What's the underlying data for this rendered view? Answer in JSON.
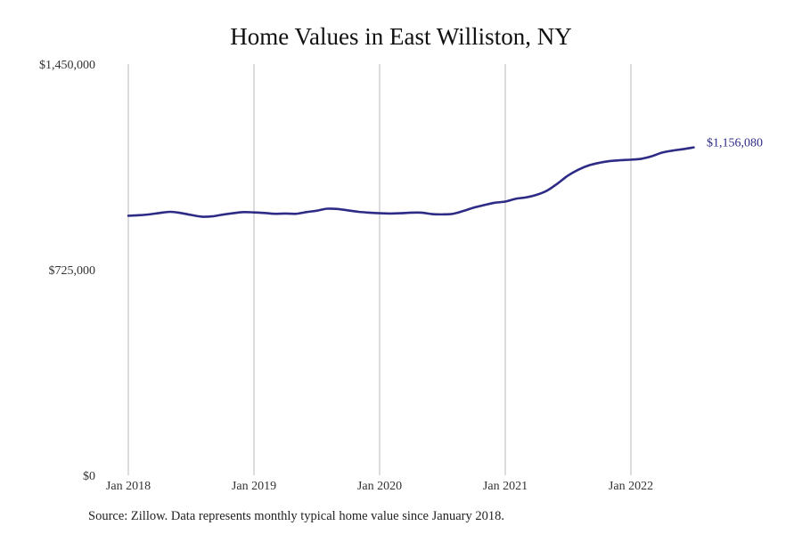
{
  "chart_data": {
    "type": "line",
    "title": "Home Values in East Williston, NY",
    "xlabel": "",
    "ylabel": "",
    "x_ticks": [
      {
        "label": "Jan 2018",
        "month": 0
      },
      {
        "label": "Jan 2019",
        "month": 12
      },
      {
        "label": "Jan 2020",
        "month": 24
      },
      {
        "label": "Jan 2021",
        "month": 36
      },
      {
        "label": "Jan 2022",
        "month": 48
      }
    ],
    "y_ticks": [
      {
        "label": "$0",
        "value": 0
      },
      {
        "label": "$725,000",
        "value": 725000
      },
      {
        "label": "$1,450,000",
        "value": 1450000
      }
    ],
    "ylim": [
      0,
      1450000
    ],
    "grid": "vertical",
    "color": "#2e2b86",
    "end_label": "$1,156,080",
    "series": [
      {
        "x": [
          "2018-01",
          "2018-02",
          "2018-03",
          "2018-04",
          "2018-05",
          "2018-06",
          "2018-07",
          "2018-08",
          "2018-09",
          "2018-10",
          "2018-11",
          "2018-12",
          "2019-01",
          "2019-02",
          "2019-03",
          "2019-04",
          "2019-05",
          "2019-06",
          "2019-07",
          "2019-08",
          "2019-09",
          "2019-10",
          "2019-11",
          "2019-12",
          "2020-01",
          "2020-02",
          "2020-03",
          "2020-04",
          "2020-05",
          "2020-06",
          "2020-07",
          "2020-08",
          "2020-09",
          "2020-10",
          "2020-11",
          "2020-12",
          "2021-01",
          "2021-02",
          "2021-03",
          "2021-04",
          "2021-05",
          "2021-06",
          "2021-07",
          "2021-08",
          "2021-09",
          "2021-10",
          "2021-11",
          "2021-12",
          "2022-01",
          "2022-02",
          "2022-03",
          "2022-04",
          "2022-05",
          "2022-06",
          "2022-07"
        ],
        "values": [
          915000,
          917000,
          920000,
          925000,
          929000,
          925000,
          918000,
          912000,
          913000,
          919000,
          924000,
          928000,
          927000,
          925000,
          922000,
          923000,
          922000,
          928000,
          933000,
          940000,
          939000,
          934000,
          929000,
          926000,
          924000,
          923000,
          924000,
          926000,
          926000,
          921000,
          920000,
          922000,
          932000,
          944000,
          953000,
          961000,
          965000,
          975000,
          980000,
          989000,
          1004000,
          1029000,
          1057000,
          1078000,
          1093000,
          1102000,
          1108000,
          1111000,
          1113000,
          1116000,
          1125000,
          1138000,
          1145000,
          1150000,
          1156080
        ]
      }
    ]
  },
  "source_note": "Source: Zillow. Data represents monthly typical home value since January 2018."
}
